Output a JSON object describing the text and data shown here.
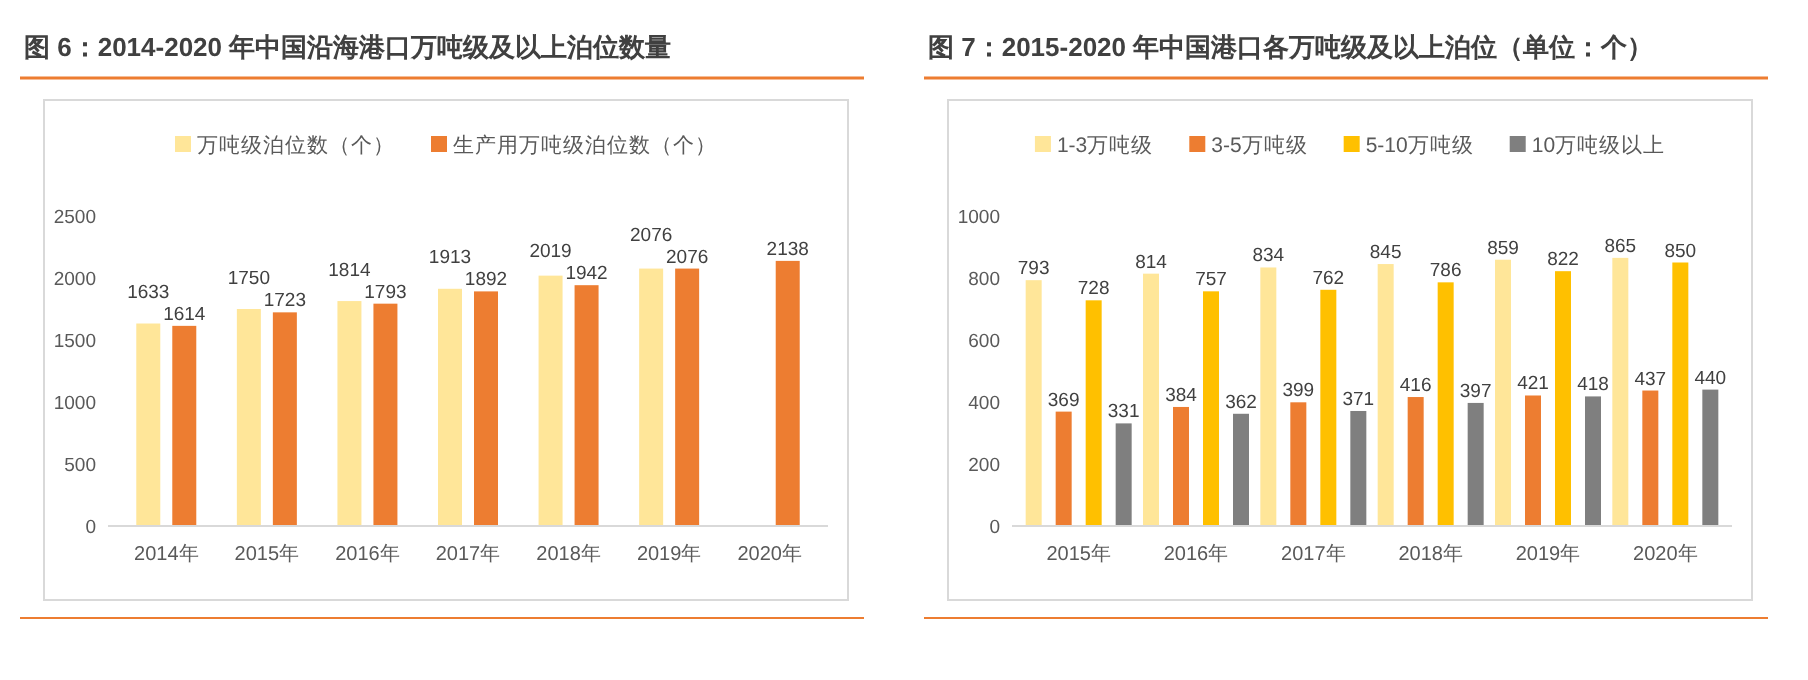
{
  "chart_data": [
    {
      "type": "bar",
      "title": "图 6：2014-2020 年中国沿海港口万吨级及以上泊位数量",
      "categories": [
        "2014年",
        "2015年",
        "2016年",
        "2017年",
        "2018年",
        "2019年",
        "2020年"
      ],
      "series": [
        {
          "name": "万吨级泊位数（个）",
          "color": "#ffe699",
          "values": [
            1633,
            1750,
            1814,
            1913,
            2019,
            2076,
            null
          ]
        },
        {
          "name": "生产用万吨级泊位数（个）",
          "color": "#ed7d31",
          "values": [
            1614,
            1723,
            1793,
            1892,
            1942,
            2076,
            2138
          ]
        }
      ],
      "ylim": [
        0,
        2500
      ],
      "yticks": [
        0,
        500,
        1000,
        1500,
        2000,
        2500
      ],
      "data_labels": true,
      "legend": "top"
    },
    {
      "type": "bar",
      "title": "图 7：2015-2020 年中国港口各万吨级及以上泊位（单位：个）",
      "categories": [
        "2015年",
        "2016年",
        "2017年",
        "2018年",
        "2019年",
        "2020年"
      ],
      "series": [
        {
          "name": "1-3万吨级",
          "color": "#ffe699",
          "values": [
            793,
            814,
            834,
            845,
            859,
            865
          ]
        },
        {
          "name": "3-5万吨级",
          "color": "#ed7d31",
          "values": [
            369,
            384,
            399,
            416,
            421,
            437
          ]
        },
        {
          "name": "5-10万吨级",
          "color": "#ffc000",
          "values": [
            728,
            757,
            762,
            786,
            822,
            850
          ]
        },
        {
          "name": "10万吨级以上",
          "color": "#7f7f7f",
          "values": [
            331,
            362,
            371,
            397,
            418,
            440
          ]
        }
      ],
      "ylim": [
        0,
        1000
      ],
      "yticks": [
        0,
        200,
        400,
        600,
        800,
        1000
      ],
      "data_labels": true,
      "legend": "top"
    }
  ]
}
